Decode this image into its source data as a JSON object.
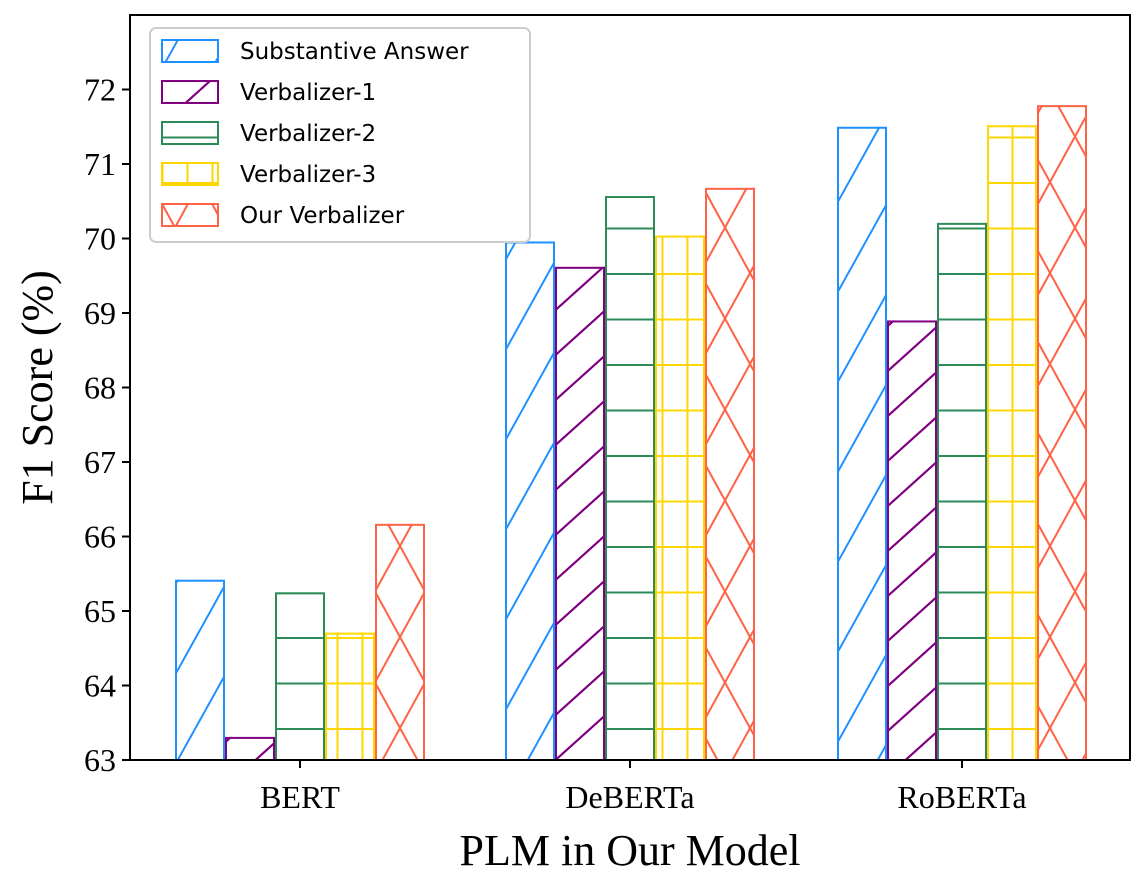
{
  "chart_data": {
    "type": "bar",
    "title": "",
    "xlabel": "PLM in Our Model",
    "ylabel": "F1 Score (%)",
    "categories": [
      "BERT",
      "DeBERTa",
      "RoBERTa"
    ],
    "ylim": [
      63,
      73
    ],
    "yticks": [
      63,
      64,
      65,
      66,
      67,
      68,
      69,
      70,
      71,
      72
    ],
    "grid": false,
    "legend_position": "top-left",
    "series": [
      {
        "name": "Substantive Answer",
        "values": [
          65.42,
          69.96,
          71.5
        ],
        "color": "#1E90FF",
        "hatch": "diagonal"
      },
      {
        "name": "Verbalizer-1",
        "values": [
          63.31,
          69.62,
          68.9
        ],
        "color": "#800080",
        "hatch": "diagonal-dense"
      },
      {
        "name": "Verbalizer-2",
        "values": [
          65.25,
          70.57,
          70.21
        ],
        "color": "#2E8B57",
        "hatch": "horizontal"
      },
      {
        "name": "Verbalizer-3",
        "values": [
          64.71,
          70.04,
          71.52
        ],
        "color": "#FFD700",
        "hatch": "grid"
      },
      {
        "name": "Our Verbalizer",
        "values": [
          66.17,
          70.68,
          71.79
        ],
        "color": "#FF6347",
        "hatch": "cross"
      }
    ]
  }
}
